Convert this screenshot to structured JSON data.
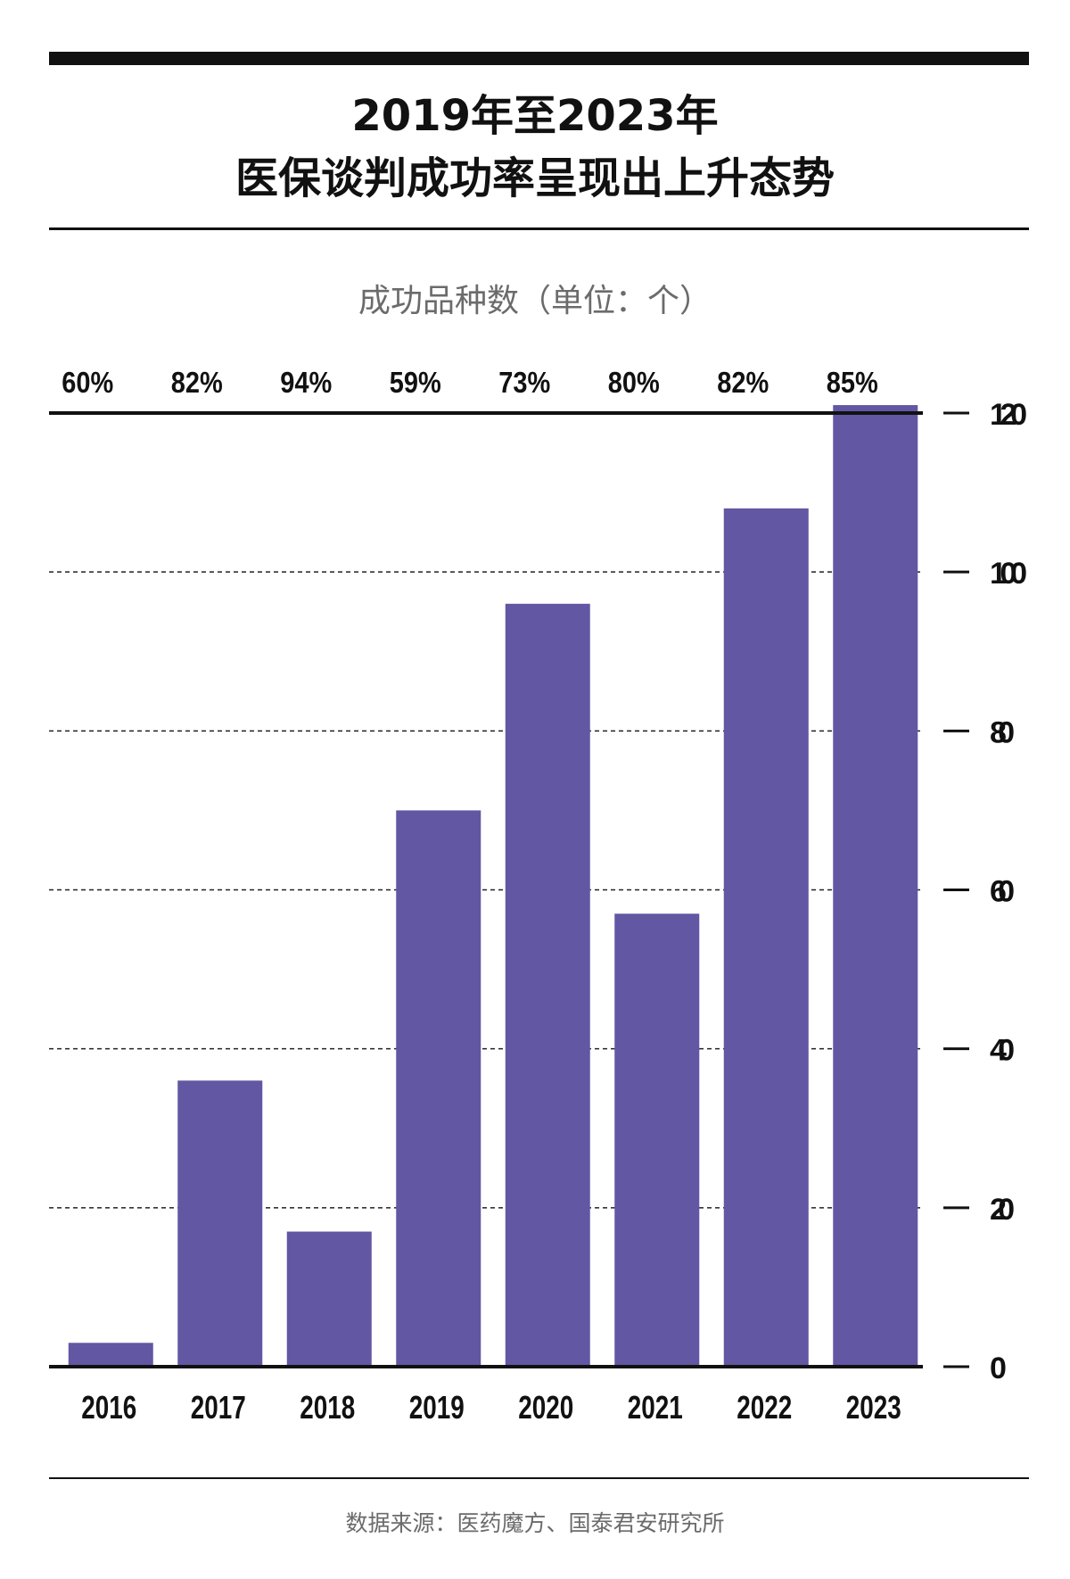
{
  "title_line1": "2019年至2023年",
  "title_line2": "医保谈判成功率呈现出上升态势",
  "source": "数据来源：医药魔方、国泰君安研究所",
  "colors": {
    "bar": "#6257A3",
    "text": "#111111",
    "muted": "#6b6b6b"
  },
  "chart_data": {
    "type": "bar",
    "title": "2019年至2023年医保谈判成功率呈现出上升态势",
    "ylabel": "成功品种数（单位：个）",
    "xlabel": "",
    "categories": [
      "2016",
      "2017",
      "2018",
      "2019",
      "2020",
      "2021",
      "2022",
      "2023"
    ],
    "values": [
      3,
      36,
      17,
      70,
      96,
      57,
      108,
      121
    ],
    "success_rates": [
      "60%",
      "82%",
      "94%",
      "59%",
      "73%",
      "80%",
      "82%",
      "85%"
    ],
    "ylim": [
      0,
      120
    ],
    "yticks": [
      0,
      20,
      40,
      60,
      80,
      100,
      120
    ],
    "grid": true,
    "axis_position": "right"
  }
}
